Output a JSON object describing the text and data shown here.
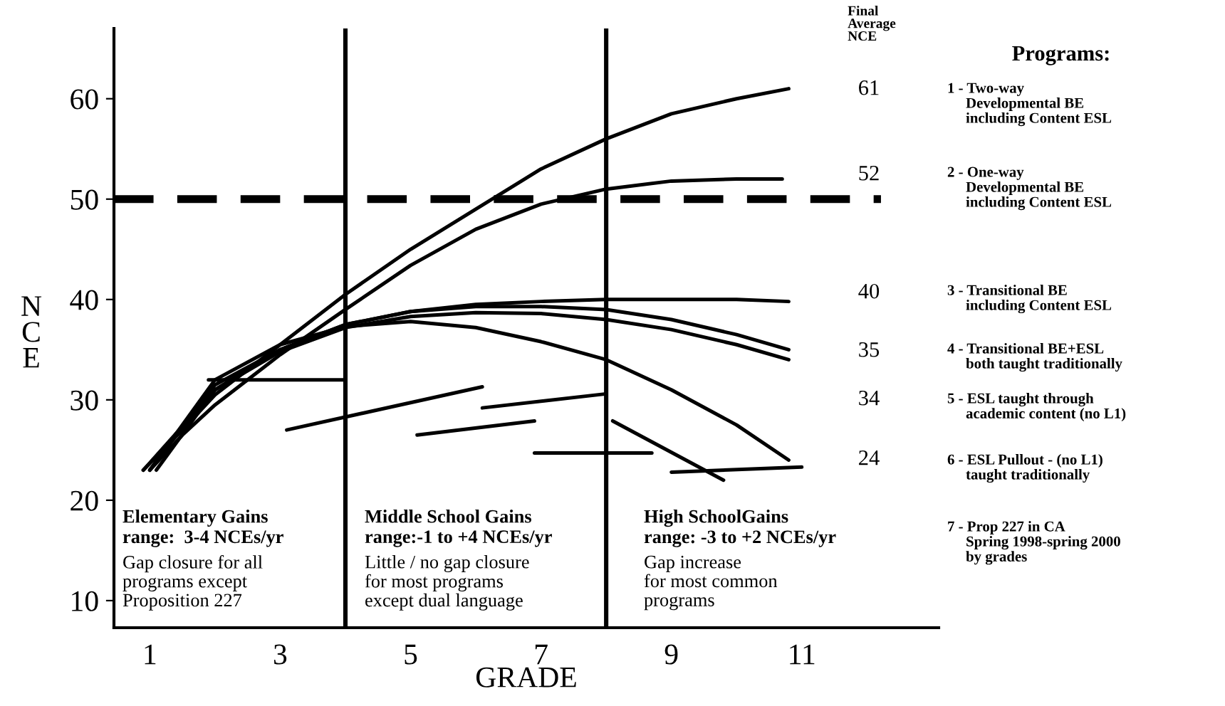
{
  "chart_data": {
    "type": "line",
    "xlabel": "GRADE",
    "ylabel": "NCE",
    "xlim": [
      0.45,
      13.1
    ],
    "ylim": [
      7.3,
      67
    ],
    "xticks": [
      1,
      3,
      5,
      7,
      9,
      11
    ],
    "yticks": [
      10,
      20,
      30,
      40,
      50,
      60
    ],
    "grid": false,
    "series": [
      {
        "color": "#000000",
        "x": [
          0.9,
          1.5,
          2,
          3,
          4,
          5,
          6,
          7,
          8,
          9,
          10,
          10.8
        ],
        "values": [
          23,
          27,
          30.5,
          35.5,
          40.5,
          45,
          49,
          53,
          56,
          58.5,
          60,
          61
        ]
      },
      {
        "color": "#000000",
        "x": [
          1,
          1.5,
          2,
          3,
          4,
          5,
          6,
          7,
          8,
          9,
          10,
          10.7
        ],
        "values": [
          23,
          26.5,
          29.5,
          34.5,
          39,
          43.4,
          47,
          49.5,
          51,
          51.8,
          52,
          52
        ]
      },
      {
        "color": "#000000",
        "x": [
          0.9,
          2,
          3,
          4,
          5,
          6,
          7,
          8,
          9,
          10,
          10.8
        ],
        "values": [
          23,
          31,
          35,
          37.5,
          38.8,
          39.5,
          39.8,
          40,
          40,
          40,
          39.8
        ]
      },
      {
        "color": "#000000",
        "x": [
          1,
          2,
          3,
          4,
          5,
          6,
          7,
          8,
          9,
          10,
          10.8
        ],
        "values": [
          23,
          31.5,
          35,
          37.5,
          38.8,
          39.3,
          39.3,
          39,
          38,
          36.5,
          35
        ]
      },
      {
        "color": "#000000",
        "x": [
          1.1,
          2,
          3,
          4,
          5,
          6,
          7,
          8,
          9,
          10,
          10.8
        ],
        "values": [
          23,
          31,
          34.8,
          37.2,
          38.3,
          38.7,
          38.6,
          38,
          37,
          35.5,
          34
        ]
      },
      {
        "color": "#000000",
        "x": [
          1,
          2,
          3,
          4,
          5,
          6,
          7,
          8,
          9,
          10,
          10.8
        ],
        "values": [
          23,
          32,
          35.5,
          37.3,
          37.8,
          37.2,
          35.8,
          34,
          31,
          27.5,
          24
        ]
      },
      {
        "color": "#000000",
        "x": [
          1.9,
          4
        ],
        "values": [
          32,
          32
        ]
      },
      {
        "color": "#000000",
        "x": [
          3.1,
          6.1
        ],
        "values": [
          27,
          31.3
        ]
      },
      {
        "color": "#000000",
        "x": [
          5.1,
          6.9
        ],
        "values": [
          26.5,
          27.9
        ]
      },
      {
        "color": "#000000",
        "x": [
          6.1,
          8
        ],
        "values": [
          29.2,
          30.6
        ]
      },
      {
        "color": "#000000",
        "x": [
          6.9,
          8.7
        ],
        "values": [
          24.7,
          24.7
        ]
      },
      {
        "color": "#000000",
        "x": [
          8.1,
          9.8
        ],
        "values": [
          27.9,
          22
        ]
      },
      {
        "color": "#000000",
        "x": [
          9,
          11
        ],
        "values": [
          22.8,
          23.3
        ]
      }
    ],
    "ref_lines": [
      {
        "axis": "y",
        "value": 50,
        "line_style": "dashed",
        "color": "#000000"
      },
      {
        "axis": "x",
        "value": 4,
        "line_style": "solid",
        "color": "#000000"
      },
      {
        "axis": "x",
        "value": 8,
        "line_style": "solid",
        "color": "#000000"
      }
    ],
    "annotations": [
      "Elementary Gains\nrange:  3-4 NCEs/yr",
      "Gap closure for all\nprograms except\nProposition 227",
      "Middle School Gains\nrange:-1 to +4 NCEs/yr",
      "Little / no gap closure\nfor most programs\nexcept dual language",
      "High SchoolGains\nrange: -3 to +2 NCEs/yr",
      "Gap increase\nfor most common\nprograms",
      "Final\nAverage\nNCE",
      "61",
      "52",
      "40",
      "35",
      "34",
      "24",
      "Programs:",
      "1 - Two-way\n     Developmental BE\n     including Content ESL",
      "2 - One-way\n     Developmental BE\n     including Content ESL",
      "3 - Transitional BE\n     including Content ESL",
      "4 - Transitional BE+ESL\n     both taught traditionally",
      "5 - ESL taught through\n     academic content (no L1)",
      "6 - ESL Pullout - (no L1)\n     taught traditionally",
      "7 - Prop 227 in CA\n     Spring 1998-spring 2000\n     by grades"
    ]
  }
}
